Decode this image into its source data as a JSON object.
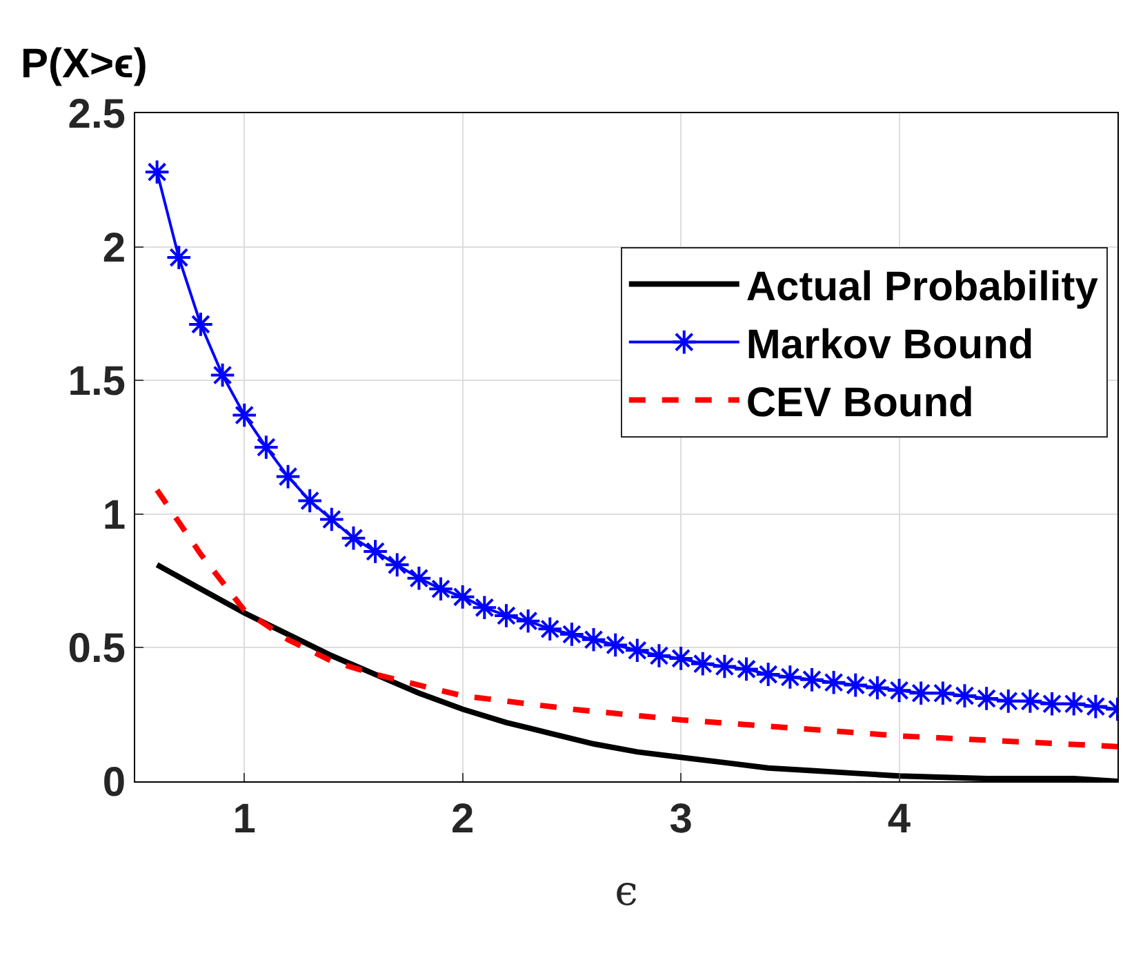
{
  "chart_data": {
    "type": "line",
    "xlabel": "ϵ",
    "ylabel": "P(X>ϵ)",
    "xlim": [
      0.5,
      5
    ],
    "xticks": [
      1,
      2,
      3,
      4
    ],
    "ylim": [
      0,
      2.5
    ],
    "yticks": [
      0,
      0.5,
      1,
      1.5,
      2,
      2.5
    ],
    "grid": true,
    "legend": "top right",
    "series": [
      {
        "name": "Actual Probability",
        "color": "#000000",
        "line_style": "solid",
        "marker": "none",
        "x": [
          0.6,
          0.8,
          1.0,
          1.2,
          1.4,
          1.6,
          1.8,
          2.0,
          2.2,
          2.4,
          2.6,
          2.8,
          3.0,
          3.2,
          3.4,
          3.6,
          3.8,
          4.0,
          4.4,
          4.8,
          5.0
        ],
        "values": [
          0.81,
          0.72,
          0.63,
          0.55,
          0.47,
          0.4,
          0.33,
          0.27,
          0.22,
          0.18,
          0.14,
          0.11,
          0.09,
          0.07,
          0.05,
          0.04,
          0.03,
          0.02,
          0.01,
          0.01,
          0.0
        ]
      },
      {
        "name": "Markov Bound",
        "color": "#0000ff",
        "line_style": "solid",
        "marker": "cross",
        "x": [
          0.6,
          0.7,
          0.8,
          0.9,
          1.0,
          1.1,
          1.2,
          1.3,
          1.4,
          1.5,
          1.6,
          1.7,
          1.8,
          1.9,
          2.0,
          2.1,
          2.2,
          2.3,
          2.4,
          2.5,
          2.6,
          2.7,
          2.8,
          2.9,
          3.0,
          3.1,
          3.2,
          3.3,
          3.4,
          3.5,
          3.6,
          3.7,
          3.8,
          3.9,
          4.0,
          4.1,
          4.2,
          4.3,
          4.4,
          4.5,
          4.6,
          4.7,
          4.8,
          4.9,
          5.0
        ],
        "values": [
          2.28,
          1.96,
          1.71,
          1.52,
          1.37,
          1.25,
          1.14,
          1.05,
          0.98,
          0.91,
          0.86,
          0.81,
          0.76,
          0.72,
          0.69,
          0.65,
          0.62,
          0.6,
          0.57,
          0.55,
          0.53,
          0.51,
          0.49,
          0.47,
          0.46,
          0.44,
          0.43,
          0.42,
          0.4,
          0.39,
          0.38,
          0.37,
          0.36,
          0.35,
          0.34,
          0.33,
          0.33,
          0.32,
          0.31,
          0.3,
          0.3,
          0.29,
          0.29,
          0.28,
          0.27
        ]
      },
      {
        "name": "CEV Bound",
        "color": "#ff0000",
        "line_style": "dashed",
        "marker": "none",
        "x": [
          0.6,
          0.8,
          1.0,
          1.2,
          1.4,
          1.6,
          1.8,
          2.0,
          2.5,
          3.0,
          3.5,
          4.0,
          4.5,
          5.0
        ],
        "values": [
          1.09,
          0.85,
          0.64,
          0.53,
          0.45,
          0.4,
          0.36,
          0.32,
          0.27,
          0.23,
          0.2,
          0.17,
          0.15,
          0.13
        ]
      }
    ]
  }
}
